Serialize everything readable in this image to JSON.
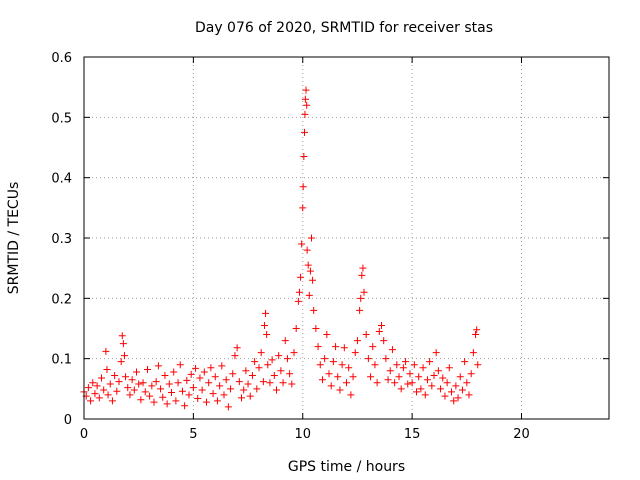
{
  "chart_data": {
    "type": "scatter",
    "title": "Day 076 of 2020, SRMTID for receiver stas",
    "xlabel": "GPS time / hours",
    "ylabel": "SRMTID / TECUs",
    "xlim": [
      0,
      24
    ],
    "ylim": [
      0,
      0.6
    ],
    "x_ticks": [
      0,
      5,
      10,
      15,
      20
    ],
    "x_tick_labels": [
      "0",
      "5",
      "10",
      "15",
      "20"
    ],
    "y_ticks": [
      0,
      0.1,
      0.2,
      0.3,
      0.4,
      0.5,
      0.6
    ],
    "y_tick_labels": [
      "0",
      "0.1",
      "0.2",
      "0.3",
      "0.4",
      "0.5",
      "0.6"
    ],
    "grid": true,
    "marker": "+",
    "series": [
      {
        "name": "SRMTID",
        "color": "#ff0000",
        "points": [
          [
            0.0,
            0.045
          ],
          [
            0.1,
            0.038
          ],
          [
            0.2,
            0.052
          ],
          [
            0.3,
            0.03
          ],
          [
            0.4,
            0.06
          ],
          [
            0.5,
            0.042
          ],
          [
            0.6,
            0.055
          ],
          [
            0.7,
            0.035
          ],
          [
            0.8,
            0.068
          ],
          [
            0.9,
            0.048
          ],
          [
            1.0,
            0.112
          ],
          [
            1.05,
            0.082
          ],
          [
            1.1,
            0.04
          ],
          [
            1.2,
            0.058
          ],
          [
            1.3,
            0.03
          ],
          [
            1.4,
            0.072
          ],
          [
            1.5,
            0.046
          ],
          [
            1.6,
            0.062
          ],
          [
            1.7,
            0.095
          ],
          [
            1.75,
            0.138
          ],
          [
            1.8,
            0.125
          ],
          [
            1.85,
            0.105
          ],
          [
            1.9,
            0.07
          ],
          [
            2.0,
            0.052
          ],
          [
            2.1,
            0.04
          ],
          [
            2.2,
            0.065
          ],
          [
            2.3,
            0.048
          ],
          [
            2.4,
            0.078
          ],
          [
            2.5,
            0.058
          ],
          [
            2.6,
            0.032
          ],
          [
            2.7,
            0.06
          ],
          [
            2.8,
            0.045
          ],
          [
            2.9,
            0.082
          ],
          [
            3.0,
            0.038
          ],
          [
            3.1,
            0.055
          ],
          [
            3.2,
            0.028
          ],
          [
            3.3,
            0.062
          ],
          [
            3.4,
            0.088
          ],
          [
            3.5,
            0.05
          ],
          [
            3.6,
            0.036
          ],
          [
            3.7,
            0.072
          ],
          [
            3.8,
            0.025
          ],
          [
            3.9,
            0.058
          ],
          [
            4.0,
            0.044
          ],
          [
            4.1,
            0.078
          ],
          [
            4.2,
            0.03
          ],
          [
            4.3,
            0.06
          ],
          [
            4.4,
            0.09
          ],
          [
            4.5,
            0.046
          ],
          [
            4.6,
            0.022
          ],
          [
            4.7,
            0.064
          ],
          [
            4.8,
            0.04
          ],
          [
            4.9,
            0.074
          ],
          [
            5.0,
            0.052
          ],
          [
            5.1,
            0.084
          ],
          [
            5.2,
            0.034
          ],
          [
            5.3,
            0.068
          ],
          [
            5.4,
            0.048
          ],
          [
            5.5,
            0.078
          ],
          [
            5.6,
            0.028
          ],
          [
            5.7,
            0.06
          ],
          [
            5.8,
            0.085
          ],
          [
            5.9,
            0.042
          ],
          [
            6.0,
            0.07
          ],
          [
            6.1,
            0.03
          ],
          [
            6.2,
            0.055
          ],
          [
            6.3,
            0.088
          ],
          [
            6.4,
            0.04
          ],
          [
            6.5,
            0.065
          ],
          [
            6.6,
            0.02
          ],
          [
            6.7,
            0.05
          ],
          [
            6.8,
            0.075
          ],
          [
            6.9,
            0.105
          ],
          [
            7.0,
            0.118
          ],
          [
            7.1,
            0.062
          ],
          [
            7.2,
            0.035
          ],
          [
            7.3,
            0.048
          ],
          [
            7.4,
            0.08
          ],
          [
            7.5,
            0.058
          ],
          [
            7.6,
            0.038
          ],
          [
            7.7,
            0.072
          ],
          [
            7.8,
            0.095
          ],
          [
            7.9,
            0.05
          ],
          [
            8.0,
            0.085
          ],
          [
            8.1,
            0.11
          ],
          [
            8.2,
            0.062
          ],
          [
            8.25,
            0.155
          ],
          [
            8.3,
            0.175
          ],
          [
            8.35,
            0.14
          ],
          [
            8.4,
            0.09
          ],
          [
            8.5,
            0.06
          ],
          [
            8.6,
            0.098
          ],
          [
            8.7,
            0.072
          ],
          [
            8.8,
            0.048
          ],
          [
            8.9,
            0.105
          ],
          [
            9.0,
            0.08
          ],
          [
            9.1,
            0.06
          ],
          [
            9.2,
            0.13
          ],
          [
            9.3,
            0.1
          ],
          [
            9.4,
            0.075
          ],
          [
            9.5,
            0.058
          ],
          [
            9.6,
            0.11
          ],
          [
            9.7,
            0.15
          ],
          [
            9.8,
            0.195
          ],
          [
            9.85,
            0.21
          ],
          [
            9.9,
            0.235
          ],
          [
            9.95,
            0.29
          ],
          [
            10.0,
            0.35
          ],
          [
            10.02,
            0.385
          ],
          [
            10.05,
            0.435
          ],
          [
            10.08,
            0.475
          ],
          [
            10.1,
            0.505
          ],
          [
            10.12,
            0.53
          ],
          [
            10.15,
            0.545
          ],
          [
            10.18,
            0.52
          ],
          [
            10.2,
            0.28
          ],
          [
            10.25,
            0.255
          ],
          [
            10.3,
            0.205
          ],
          [
            10.35,
            0.245
          ],
          [
            10.4,
            0.3
          ],
          [
            10.45,
            0.23
          ],
          [
            10.5,
            0.18
          ],
          [
            10.6,
            0.15
          ],
          [
            10.7,
            0.12
          ],
          [
            10.8,
            0.09
          ],
          [
            10.9,
            0.065
          ],
          [
            11.0,
            0.1
          ],
          [
            11.1,
            0.14
          ],
          [
            11.2,
            0.075
          ],
          [
            11.3,
            0.055
          ],
          [
            11.4,
            0.095
          ],
          [
            11.5,
            0.12
          ],
          [
            11.6,
            0.07
          ],
          [
            11.7,
            0.048
          ],
          [
            11.8,
            0.09
          ],
          [
            11.9,
            0.118
          ],
          [
            12.0,
            0.06
          ],
          [
            12.1,
            0.085
          ],
          [
            12.2,
            0.04
          ],
          [
            12.3,
            0.07
          ],
          [
            12.4,
            0.11
          ],
          [
            12.5,
            0.13
          ],
          [
            12.6,
            0.18
          ],
          [
            12.65,
            0.2
          ],
          [
            12.7,
            0.238
          ],
          [
            12.75,
            0.25
          ],
          [
            12.8,
            0.21
          ],
          [
            12.9,
            0.14
          ],
          [
            13.0,
            0.1
          ],
          [
            13.1,
            0.07
          ],
          [
            13.2,
            0.12
          ],
          [
            13.3,
            0.09
          ],
          [
            13.4,
            0.06
          ],
          [
            13.5,
            0.145
          ],
          [
            13.6,
            0.155
          ],
          [
            13.7,
            0.13
          ],
          [
            13.8,
            0.1
          ],
          [
            13.9,
            0.065
          ],
          [
            14.0,
            0.08
          ],
          [
            14.1,
            0.115
          ],
          [
            14.2,
            0.06
          ],
          [
            14.3,
            0.09
          ],
          [
            14.4,
            0.07
          ],
          [
            14.5,
            0.05
          ],
          [
            14.6,
            0.085
          ],
          [
            14.7,
            0.095
          ],
          [
            14.8,
            0.058
          ],
          [
            14.9,
            0.075
          ],
          [
            15.0,
            0.06
          ],
          [
            15.1,
            0.09
          ],
          [
            15.2,
            0.045
          ],
          [
            15.3,
            0.07
          ],
          [
            15.4,
            0.05
          ],
          [
            15.5,
            0.085
          ],
          [
            15.6,
            0.04
          ],
          [
            15.7,
            0.065
          ],
          [
            15.8,
            0.095
          ],
          [
            15.9,
            0.055
          ],
          [
            16.0,
            0.072
          ],
          [
            16.1,
            0.11
          ],
          [
            16.2,
            0.08
          ],
          [
            16.3,
            0.05
          ],
          [
            16.4,
            0.068
          ],
          [
            16.5,
            0.038
          ],
          [
            16.6,
            0.06
          ],
          [
            16.7,
            0.085
          ],
          [
            16.8,
            0.045
          ],
          [
            16.9,
            0.03
          ],
          [
            17.0,
            0.055
          ],
          [
            17.1,
            0.035
          ],
          [
            17.2,
            0.07
          ],
          [
            17.3,
            0.048
          ],
          [
            17.4,
            0.095
          ],
          [
            17.5,
            0.06
          ],
          [
            17.6,
            0.04
          ],
          [
            17.7,
            0.075
          ],
          [
            17.8,
            0.11
          ],
          [
            17.9,
            0.14
          ],
          [
            17.95,
            0.148
          ],
          [
            18.0,
            0.09
          ]
        ]
      }
    ]
  }
}
